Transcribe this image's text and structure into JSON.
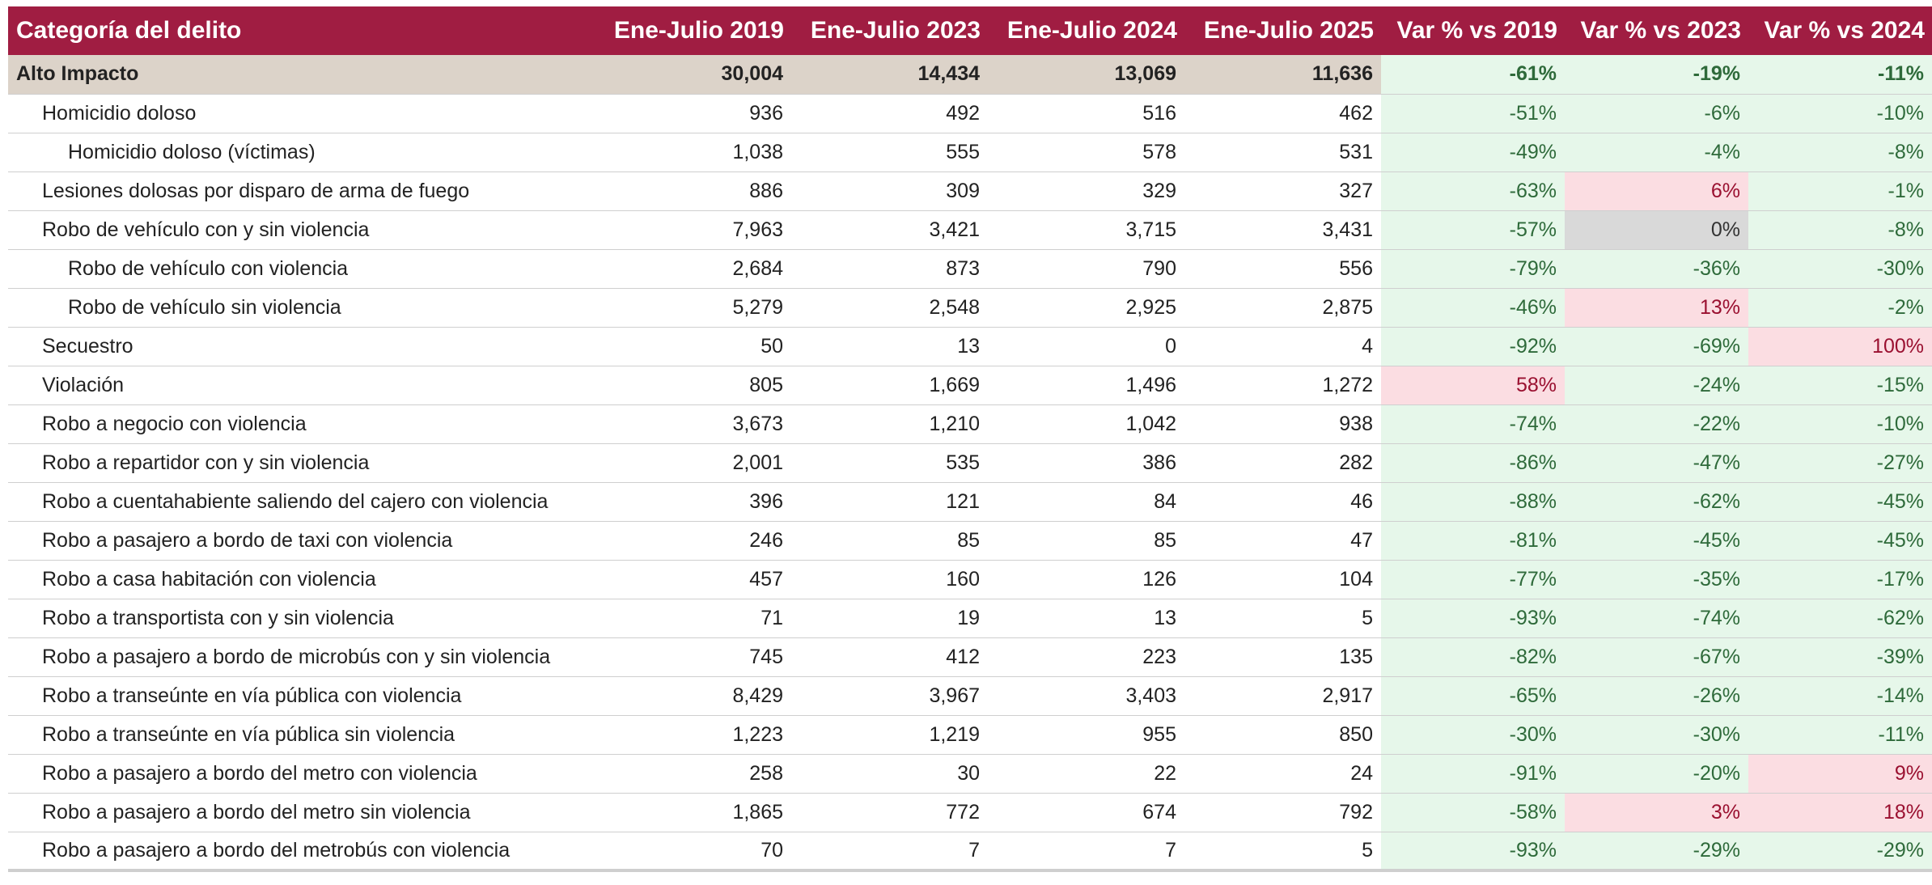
{
  "columns": [
    "Categoría del delito",
    "Ene-Julio 2019",
    "Ene-Julio 2023",
    "Ene-Julio 2024",
    "Ene-Julio 2025",
    "Var % vs 2019",
    "Var % vs 2023",
    "Var % vs 2024"
  ],
  "colors": {
    "header_bg": "#a01d42",
    "aggregate_bg": "#dcd3c9",
    "decrease_bg": "#e6f7ea",
    "increase_bg": "#fbdde2",
    "no_change_bg": "#d9d9d9"
  },
  "rows": [
    {
      "name": "Alto Impacto",
      "level": 0,
      "values": [
        "30,004",
        "14,434",
        "13,069",
        "11,636"
      ],
      "var": [
        "-61%",
        "-19%",
        "-11%"
      ],
      "status": [
        "dn",
        "dn",
        "dn"
      ]
    },
    {
      "name": "Homicidio doloso",
      "level": 1,
      "values": [
        "936",
        "492",
        "516",
        "462"
      ],
      "var": [
        "-51%",
        "-6%",
        "-10%"
      ],
      "status": [
        "dn",
        "dn",
        "dn"
      ]
    },
    {
      "name": "Homicidio doloso (víctimas)",
      "level": 2,
      "values": [
        "1,038",
        "555",
        "578",
        "531"
      ],
      "var": [
        "-49%",
        "-4%",
        "-8%"
      ],
      "status": [
        "dn",
        "dn",
        "dn"
      ]
    },
    {
      "name": "Lesiones dolosas por disparo de arma de fuego",
      "level": 1,
      "values": [
        "886",
        "309",
        "329",
        "327"
      ],
      "var": [
        "-63%",
        "6%",
        "-1%"
      ],
      "status": [
        "dn",
        "up",
        "dn"
      ]
    },
    {
      "name": "Robo de vehículo con y sin violencia",
      "level": 1,
      "values": [
        "7,963",
        "3,421",
        "3,715",
        "3,431"
      ],
      "var": [
        "-57%",
        "0%",
        "-8%"
      ],
      "status": [
        "dn",
        "eq",
        "dn"
      ]
    },
    {
      "name": "Robo de vehículo con violencia",
      "level": 2,
      "values": [
        "2,684",
        "873",
        "790",
        "556"
      ],
      "var": [
        "-79%",
        "-36%",
        "-30%"
      ],
      "status": [
        "dn",
        "dn",
        "dn"
      ]
    },
    {
      "name": "Robo de vehículo sin violencia",
      "level": 2,
      "values": [
        "5,279",
        "2,548",
        "2,925",
        "2,875"
      ],
      "var": [
        "-46%",
        "13%",
        "-2%"
      ],
      "status": [
        "dn",
        "up",
        "dn"
      ]
    },
    {
      "name": "Secuestro",
      "level": 1,
      "values": [
        "50",
        "13",
        "0",
        "4"
      ],
      "var": [
        "-92%",
        "-69%",
        "100%"
      ],
      "status": [
        "dn",
        "dn",
        "up"
      ]
    },
    {
      "name": "Violación",
      "level": 1,
      "values": [
        "805",
        "1,669",
        "1,496",
        "1,272"
      ],
      "var": [
        "58%",
        "-24%",
        "-15%"
      ],
      "status": [
        "up",
        "dn",
        "dn"
      ]
    },
    {
      "name": "Robo a negocio con violencia",
      "level": 1,
      "values": [
        "3,673",
        "1,210",
        "1,042",
        "938"
      ],
      "var": [
        "-74%",
        "-22%",
        "-10%"
      ],
      "status": [
        "dn",
        "dn",
        "dn"
      ]
    },
    {
      "name": "Robo a repartidor con y sin violencia",
      "level": 1,
      "values": [
        "2,001",
        "535",
        "386",
        "282"
      ],
      "var": [
        "-86%",
        "-47%",
        "-27%"
      ],
      "status": [
        "dn",
        "dn",
        "dn"
      ]
    },
    {
      "name": "Robo a cuentahabiente saliendo del cajero con violencia",
      "level": 1,
      "values": [
        "396",
        "121",
        "84",
        "46"
      ],
      "var": [
        "-88%",
        "-62%",
        "-45%"
      ],
      "status": [
        "dn",
        "dn",
        "dn"
      ]
    },
    {
      "name": "Robo a pasajero a bordo de taxi con violencia",
      "level": 1,
      "values": [
        "246",
        "85",
        "85",
        "47"
      ],
      "var": [
        "-81%",
        "-45%",
        "-45%"
      ],
      "status": [
        "dn",
        "dn",
        "dn"
      ]
    },
    {
      "name": "Robo a casa habitación con violencia",
      "level": 1,
      "values": [
        "457",
        "160",
        "126",
        "104"
      ],
      "var": [
        "-77%",
        "-35%",
        "-17%"
      ],
      "status": [
        "dn",
        "dn",
        "dn"
      ]
    },
    {
      "name": "Robo a transportista con y sin violencia",
      "level": 1,
      "values": [
        "71",
        "19",
        "13",
        "5"
      ],
      "var": [
        "-93%",
        "-74%",
        "-62%"
      ],
      "status": [
        "dn",
        "dn",
        "dn"
      ]
    },
    {
      "name": "Robo a pasajero a bordo de microbús con y sin violencia",
      "level": 1,
      "values": [
        "745",
        "412",
        "223",
        "135"
      ],
      "var": [
        "-82%",
        "-67%",
        "-39%"
      ],
      "status": [
        "dn",
        "dn",
        "dn"
      ]
    },
    {
      "name": "Robo a transeúnte en vía pública con violencia",
      "level": 1,
      "values": [
        "8,429",
        "3,967",
        "3,403",
        "2,917"
      ],
      "var": [
        "-65%",
        "-26%",
        "-14%"
      ],
      "status": [
        "dn",
        "dn",
        "dn"
      ]
    },
    {
      "name": "Robo a transeúnte en vía pública sin violencia",
      "level": 1,
      "values": [
        "1,223",
        "1,219",
        "955",
        "850"
      ],
      "var": [
        "-30%",
        "-30%",
        "-11%"
      ],
      "status": [
        "dn",
        "dn",
        "dn"
      ]
    },
    {
      "name": "Robo a pasajero a bordo del metro con violencia",
      "level": 1,
      "values": [
        "258",
        "30",
        "22",
        "24"
      ],
      "var": [
        "-91%",
        "-20%",
        "9%"
      ],
      "status": [
        "dn",
        "dn",
        "up"
      ]
    },
    {
      "name": "Robo a pasajero a bordo del metro sin violencia",
      "level": 1,
      "values": [
        "1,865",
        "772",
        "674",
        "792"
      ],
      "var": [
        "-58%",
        "3%",
        "18%"
      ],
      "status": [
        "dn",
        "up",
        "up"
      ]
    },
    {
      "name": "Robo a pasajero a bordo del metrobús con violencia",
      "level": 1,
      "values": [
        "70",
        "7",
        "7",
        "5"
      ],
      "var": [
        "-93%",
        "-29%",
        "-29%"
      ],
      "status": [
        "dn",
        "dn",
        "dn"
      ]
    }
  ]
}
